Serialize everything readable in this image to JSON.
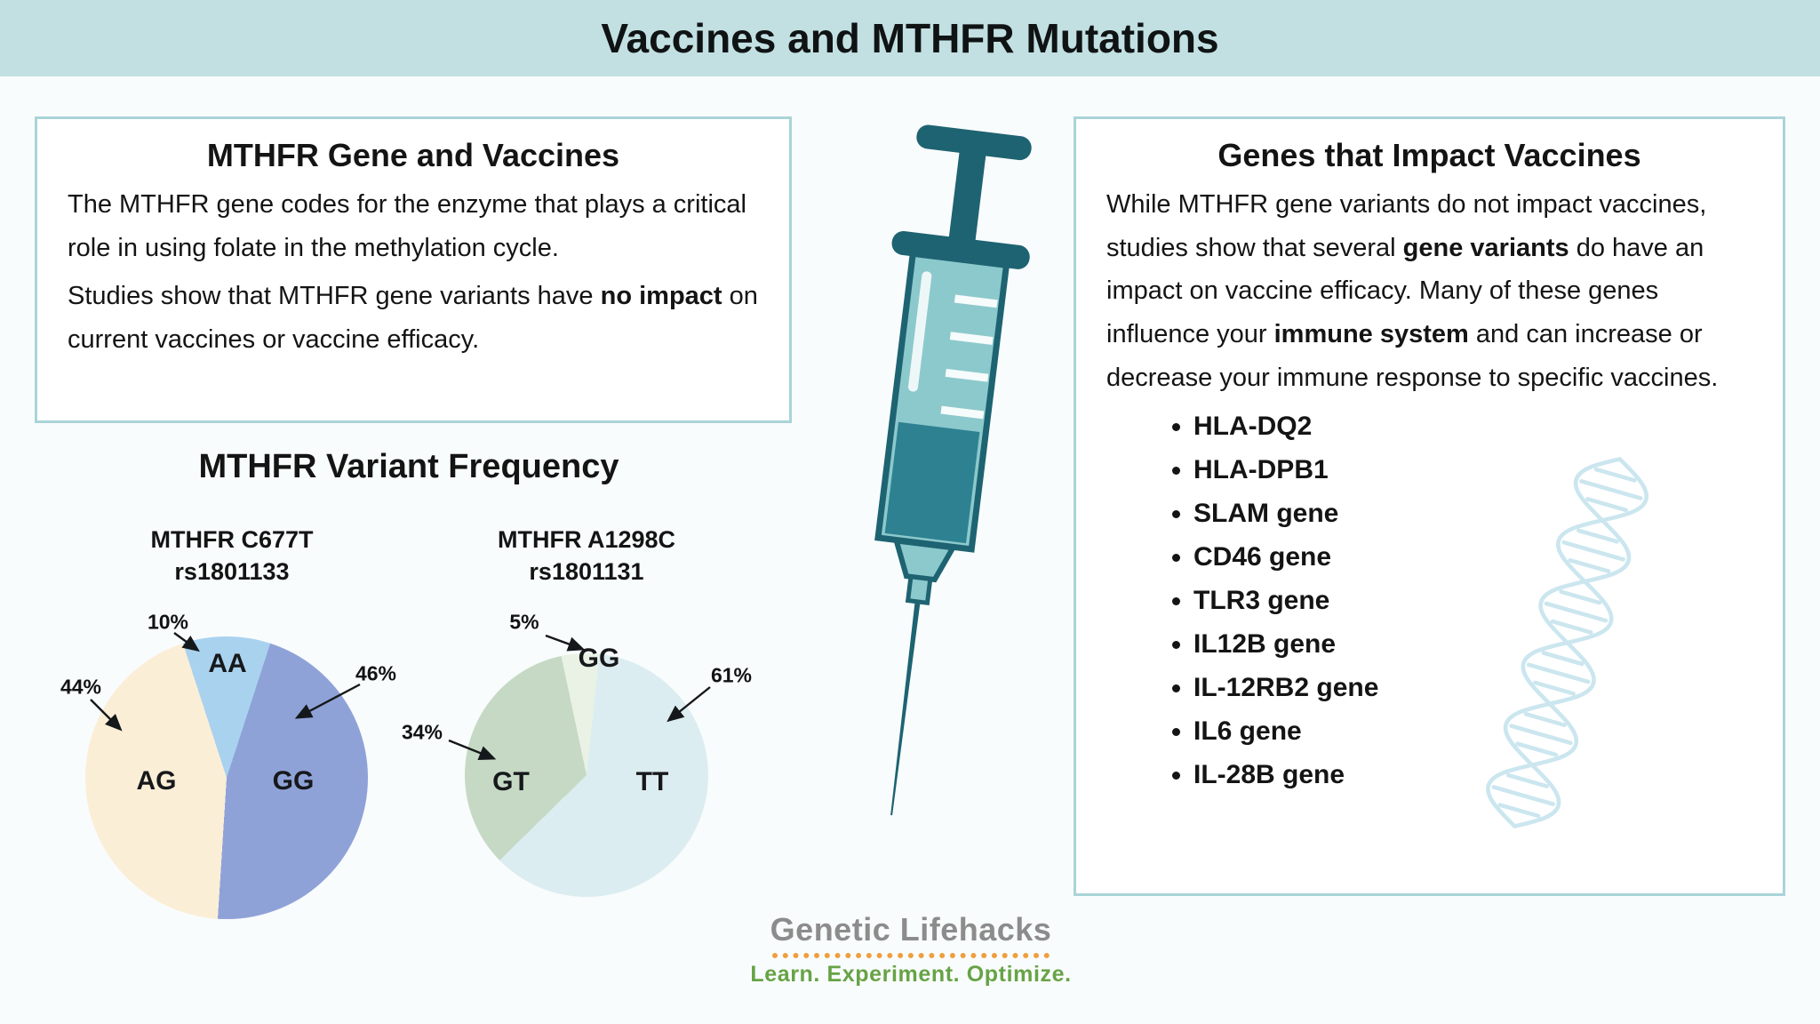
{
  "page": {
    "title": "Vaccines and MTHFR Mutations"
  },
  "theme": {
    "banner_bg": "#c2e0e2",
    "panel_border": "#a9d4d8",
    "panel_bg": "#ffffff",
    "page_bg": "#f9fcfc",
    "text": "#141414",
    "syringe_dark": "#1e6372",
    "syringe_light": "#8cc9cc",
    "syringe_liquid": "#2e8191",
    "helix": "#cbe6ef",
    "logo_gray": "#8c8c8c",
    "logo_orange": "#ef9f3e",
    "logo_green": "#67a346"
  },
  "left_panel": {
    "heading": "MTHFR Gene and Vaccines",
    "paragraph1": "The MTHFR gene codes for the enzyme that plays a critical role in using folate in the methylation cycle.",
    "paragraph2": {
      "pre": "Studies show that MTHFR gene variants have ",
      "bold": "no impact",
      "post": " on current vaccines or vaccine efficacy."
    }
  },
  "variant_frequency_heading": "MTHFR Variant Frequency",
  "chart_data": [
    {
      "type": "pie",
      "title": "MTHFR C677T",
      "subtitle": "rs1801133",
      "labels": [
        "AA",
        "GG",
        "AG"
      ],
      "values": [
        10,
        46,
        44
      ],
      "pct_labels": [
        "10%",
        "46%",
        "44%"
      ],
      "colors": [
        "#a9d2ef",
        "#8fa2d8",
        "#fbeed7"
      ],
      "start_angle_deg": -18,
      "direction": "clockwise",
      "legend": "none"
    },
    {
      "type": "pie",
      "title": "MTHFR A1298C",
      "subtitle": "rs1801131",
      "labels": [
        "GG",
        "TT",
        "GT"
      ],
      "values": [
        5,
        61,
        34
      ],
      "pct_labels": [
        "5%",
        "61%",
        "34%"
      ],
      "colors": [
        "#e9f2e5",
        "#dcedf1",
        "#c6d9c5"
      ],
      "start_angle_deg": -12,
      "direction": "clockwise",
      "legend": "none"
    }
  ],
  "right_panel": {
    "heading": "Genes that Impact Vaccines",
    "intro": [
      {
        "text": "While MTHFR gene variants do not impact vaccines, studies show that several ",
        "bold": false
      },
      {
        "text": "gene variants",
        "bold": true
      },
      {
        "text": " do have an impact on vaccine efficacy. Many of these genes influence your ",
        "bold": false
      },
      {
        "text": "immune system",
        "bold": true
      },
      {
        "text": " and can increase or decrease your immune response to specific vaccines.",
        "bold": false
      }
    ],
    "genes": [
      "HLA-DQ2",
      "HLA-DPB1",
      "SLAM gene",
      "CD46 gene",
      "TLR3 gene",
      "IL12B gene",
      "IL-12RB2 gene",
      "IL6 gene",
      "IL-28B gene"
    ]
  },
  "logo": {
    "name": "Genetic Lifehacks",
    "tagline": "Learn. Experiment. Optimize."
  }
}
